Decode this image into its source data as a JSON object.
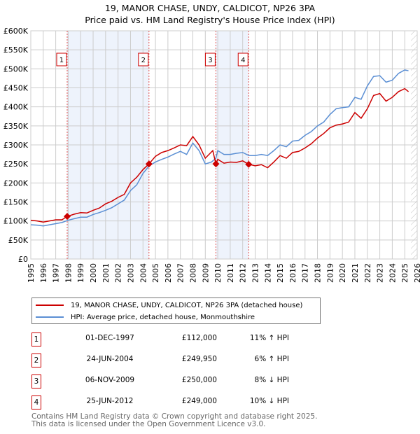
{
  "chart_data": {
    "type": "line",
    "title": "19, MANOR CHASE, UNDY, CALDICOT, NP26 3PA",
    "subtitle": "Price paid vs. HM Land Registry's House Price Index (HPI)",
    "xlim": [
      1995,
      2026
    ],
    "ylim": [
      0,
      600000
    ],
    "x_ticks": [
      "1995",
      "1996",
      "1997",
      "1998",
      "1999",
      "2000",
      "2001",
      "2002",
      "2003",
      "2004",
      "2005",
      "2006",
      "2007",
      "2008",
      "2009",
      "2010",
      "2011",
      "2012",
      "2013",
      "2014",
      "2015",
      "2016",
      "2017",
      "2018",
      "2019",
      "2020",
      "2021",
      "2022",
      "2023",
      "2024",
      "2025",
      "2026"
    ],
    "y_ticks": [
      {
        "v": 0,
        "label": "£0"
      },
      {
        "v": 50000,
        "label": "£50K"
      },
      {
        "v": 100000,
        "label": "£100K"
      },
      {
        "v": 150000,
        "label": "£150K"
      },
      {
        "v": 200000,
        "label": "£200K"
      },
      {
        "v": 250000,
        "label": "£250K"
      },
      {
        "v": 300000,
        "label": "£300K"
      },
      {
        "v": 350000,
        "label": "£350K"
      },
      {
        "v": 400000,
        "label": "£400K"
      },
      {
        "v": 450000,
        "label": "£450K"
      },
      {
        "v": 500000,
        "label": "£500K"
      },
      {
        "v": 550000,
        "label": "£550K"
      },
      {
        "v": 600000,
        "label": "£600K"
      }
    ],
    "grid": true,
    "shaded_ranges": [
      [
        1997.92,
        2004.48
      ],
      [
        2009.85,
        2012.48
      ]
    ],
    "future_hatch_from": 2025.5,
    "series": [
      {
        "name": "19, MANOR CHASE, UNDY, CALDICOT, NP26 3PA (detached house)",
        "color": "#cc0000",
        "x": [
          1995,
          1995.5,
          1996,
          1996.5,
          1997,
          1997.5,
          1997.92,
          1998.5,
          1999,
          1999.5,
          2000,
          2000.5,
          2001,
          2001.5,
          2002,
          2002.5,
          2003,
          2003.5,
          2004,
          2004.48,
          2005,
          2005.5,
          2006,
          2006.5,
          2007,
          2007.5,
          2008,
          2008.5,
          2009,
          2009.6,
          2009.85,
          2010,
          2010.5,
          2011,
          2011.5,
          2012,
          2012.48,
          2013,
          2013.5,
          2014,
          2014.5,
          2015,
          2015.5,
          2016,
          2016.5,
          2017,
          2017.5,
          2018,
          2018.5,
          2019,
          2019.5,
          2020,
          2020.5,
          2021,
          2021.5,
          2022,
          2022.5,
          2023,
          2023.5,
          2024,
          2024.5,
          2025,
          2025.3
        ],
        "y": [
          102000,
          100000,
          97000,
          100000,
          103000,
          103000,
          112000,
          118000,
          122000,
          121000,
          128000,
          134000,
          145000,
          152000,
          162000,
          170000,
          200000,
          215000,
          235000,
          249950,
          270000,
          280000,
          285000,
          292000,
          300000,
          298000,
          322000,
          300000,
          265000,
          285000,
          250000,
          262000,
          252000,
          255000,
          254000,
          258000,
          249000,
          245000,
          248000,
          240000,
          255000,
          272000,
          265000,
          280000,
          283000,
          292000,
          303000,
          318000,
          330000,
          345000,
          352000,
          355000,
          360000,
          385000,
          370000,
          395000,
          430000,
          435000,
          415000,
          425000,
          440000,
          448000,
          440000
        ]
      },
      {
        "name": "HPI: Average price, detached house, Monmouthshire",
        "color": "#5b8fd4",
        "x": [
          1995,
          1995.5,
          1996,
          1996.5,
          1997,
          1997.5,
          1998,
          1998.5,
          1999,
          1999.5,
          2000,
          2000.5,
          2001,
          2001.5,
          2002,
          2002.5,
          2003,
          2003.5,
          2004,
          2004.5,
          2005,
          2005.5,
          2006,
          2006.5,
          2007,
          2007.5,
          2008,
          2008.5,
          2009,
          2009.5,
          2009.85,
          2010,
          2010.5,
          2011,
          2011.5,
          2012,
          2012.5,
          2013,
          2013.5,
          2014,
          2014.5,
          2015,
          2015.5,
          2016,
          2016.5,
          2017,
          2017.5,
          2018,
          2018.5,
          2019,
          2019.5,
          2020,
          2020.5,
          2021,
          2021.5,
          2022,
          2022.5,
          2023,
          2023.5,
          2024,
          2024.5,
          2025,
          2025.3
        ],
        "y": [
          90000,
          89000,
          87000,
          90000,
          93000,
          96000,
          102000,
          106000,
          110000,
          110000,
          117000,
          122000,
          128000,
          135000,
          145000,
          155000,
          180000,
          195000,
          225000,
          245000,
          255000,
          262000,
          268000,
          276000,
          283000,
          275000,
          305000,
          285000,
          250000,
          255000,
          265000,
          285000,
          275000,
          275000,
          278000,
          280000,
          272000,
          272000,
          275000,
          272000,
          285000,
          300000,
          295000,
          310000,
          312000,
          325000,
          335000,
          350000,
          360000,
          380000,
          395000,
          398000,
          400000,
          425000,
          420000,
          455000,
          480000,
          482000,
          465000,
          470000,
          488000,
          497000,
          495000
        ]
      }
    ],
    "sales": [
      {
        "n": "1",
        "x": 1997.92,
        "y": 112000
      },
      {
        "n": "2",
        "x": 2004.48,
        "y": 249950
      },
      {
        "n": "3",
        "x": 2009.85,
        "y": 250000
      },
      {
        "n": "4",
        "x": 2012.48,
        "y": 249000
      }
    ]
  },
  "legend": [
    "19, MANOR CHASE, UNDY, CALDICOT, NP26 3PA (detached house)",
    "HPI: Average price, detached house, Monmouthshire"
  ],
  "transactions": [
    {
      "n": "1",
      "date": "01-DEC-1997",
      "price": "£112,000",
      "hpi": "11% ↑ HPI"
    },
    {
      "n": "2",
      "date": "24-JUN-2004",
      "price": "£249,950",
      "hpi": "6% ↑ HPI"
    },
    {
      "n": "3",
      "date": "06-NOV-2009",
      "price": "£250,000",
      "hpi": "8% ↓ HPI"
    },
    {
      "n": "4",
      "date": "25-JUN-2012",
      "price": "£249,000",
      "hpi": "10% ↓ HPI"
    }
  ],
  "footer": [
    "Contains HM Land Registry data © Crown copyright and database right 2025.",
    "This data is licensed under the Open Government Licence v3.0."
  ]
}
